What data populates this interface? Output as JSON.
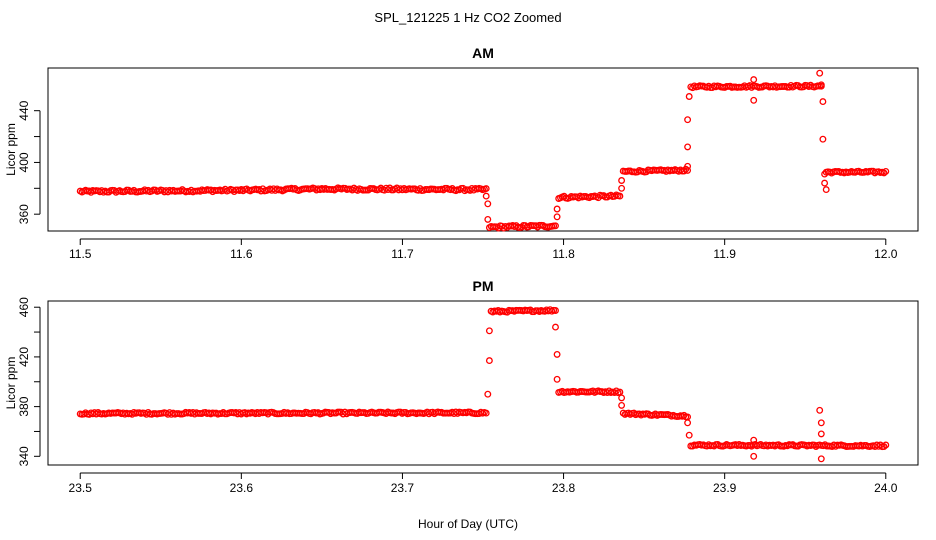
{
  "figure": {
    "title": "SPL_121225  1 Hz CO2 Zoomed",
    "shared_xlabel": "Hour of Day (UTC)"
  },
  "chart_data": [
    {
      "type": "scatter",
      "title": "AM",
      "xlabel": "Hour of Day (UTC)",
      "ylabel": "Licor ppm",
      "xlim": [
        11.48,
        12.02
      ],
      "ylim": [
        347,
        473
      ],
      "xticks": [
        11.5,
        11.6,
        11.7,
        11.8,
        11.9,
        12.0
      ],
      "xtick_labels": [
        "11.5",
        "11.6",
        "11.7",
        "11.8",
        "11.9",
        "12.0"
      ],
      "yticks": [
        360,
        400,
        440
      ],
      "ytick_labels": [
        "360",
        "400",
        "440"
      ],
      "grid": false,
      "color": "#ff0000",
      "marker": "open-circle",
      "segments": [
        {
          "x_start": 11.5,
          "x_end": 11.6,
          "y_start": 377.5,
          "y_end": 378.5,
          "noise": 1.0
        },
        {
          "x_start": 11.6,
          "x_end": 11.65,
          "y_start": 378.5,
          "y_end": 379.5,
          "noise": 1.0
        },
        {
          "x_start": 11.65,
          "x_end": 11.752,
          "y_start": 379.5,
          "y_end": 379.0,
          "noise": 1.0
        },
        {
          "x_start": 11.754,
          "x_end": 11.795,
          "y_start": 350.0,
          "y_end": 351.0,
          "noise": 1.0
        },
        {
          "x_start": 11.797,
          "x_end": 11.835,
          "y_start": 373.0,
          "y_end": 374.0,
          "noise": 1.0
        },
        {
          "x_start": 11.837,
          "x_end": 11.877,
          "y_start": 393.0,
          "y_end": 394.0,
          "noise": 0.8
        },
        {
          "x_start": 11.879,
          "x_end": 11.96,
          "y_start": 458.5,
          "y_end": 459.0,
          "noise": 0.8
        },
        {
          "x_start": 11.963,
          "x_end": 12.0,
          "y_start": 392.5,
          "y_end": 392.5,
          "noise": 0.8
        }
      ],
      "points": [
        {
          "x": 11.752,
          "y": 374
        },
        {
          "x": 11.753,
          "y": 368
        },
        {
          "x": 11.753,
          "y": 356
        },
        {
          "x": 11.796,
          "y": 358
        },
        {
          "x": 11.796,
          "y": 364
        },
        {
          "x": 11.836,
          "y": 380
        },
        {
          "x": 11.836,
          "y": 386
        },
        {
          "x": 11.877,
          "y": 397
        },
        {
          "x": 11.877,
          "y": 412
        },
        {
          "x": 11.877,
          "y": 433
        },
        {
          "x": 11.878,
          "y": 451
        },
        {
          "x": 11.918,
          "y": 448
        },
        {
          "x": 11.918,
          "y": 464
        },
        {
          "x": 11.959,
          "y": 469
        },
        {
          "x": 11.96,
          "y": 460
        },
        {
          "x": 11.961,
          "y": 447
        },
        {
          "x": 11.961,
          "y": 418
        },
        {
          "x": 11.962,
          "y": 391
        },
        {
          "x": 11.962,
          "y": 384
        },
        {
          "x": 11.963,
          "y": 379
        }
      ]
    },
    {
      "type": "scatter",
      "title": "PM",
      "xlabel": "Hour of Day (UTC)",
      "ylabel": "Licor ppm",
      "xlim": [
        23.48,
        24.02
      ],
      "ylim": [
        333,
        465
      ],
      "xticks": [
        23.5,
        23.6,
        23.7,
        23.8,
        23.9,
        24.0
      ],
      "xtick_labels": [
        "23.5",
        "23.6",
        "23.7",
        "23.8",
        "23.9",
        "24.0"
      ],
      "yticks": [
        340,
        380,
        420,
        460
      ],
      "ytick_labels": [
        "340",
        "380",
        "420",
        "460"
      ],
      "grid": false,
      "color": "#ff0000",
      "marker": "open-circle",
      "segments": [
        {
          "x_start": 23.5,
          "x_end": 23.752,
          "y_start": 374.5,
          "y_end": 375.0,
          "noise": 0.8
        },
        {
          "x_start": 23.755,
          "x_end": 23.795,
          "y_start": 456.5,
          "y_end": 457.5,
          "noise": 0.8
        },
        {
          "x_start": 23.797,
          "x_end": 23.835,
          "y_start": 392.0,
          "y_end": 392.0,
          "noise": 0.8
        },
        {
          "x_start": 23.837,
          "x_end": 23.877,
          "y_start": 374.5,
          "y_end": 372.5,
          "noise": 0.8
        },
        {
          "x_start": 23.879,
          "x_end": 24.0,
          "y_start": 349.0,
          "y_end": 348.5,
          "noise": 0.8
        }
      ],
      "points": [
        {
          "x": 23.753,
          "y": 390
        },
        {
          "x": 23.754,
          "y": 417
        },
        {
          "x": 23.754,
          "y": 441
        },
        {
          "x": 23.795,
          "y": 444
        },
        {
          "x": 23.796,
          "y": 422
        },
        {
          "x": 23.796,
          "y": 402
        },
        {
          "x": 23.836,
          "y": 387
        },
        {
          "x": 23.836,
          "y": 381
        },
        {
          "x": 23.877,
          "y": 367
        },
        {
          "x": 23.878,
          "y": 357
        },
        {
          "x": 23.918,
          "y": 353
        },
        {
          "x": 23.918,
          "y": 340
        },
        {
          "x": 23.959,
          "y": 377
        },
        {
          "x": 23.96,
          "y": 367
        },
        {
          "x": 23.96,
          "y": 358
        },
        {
          "x": 23.96,
          "y": 338
        }
      ]
    }
  ]
}
